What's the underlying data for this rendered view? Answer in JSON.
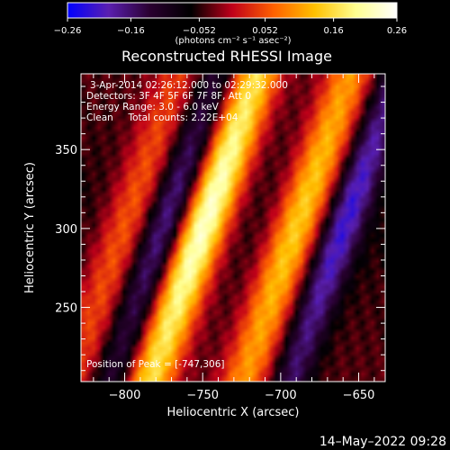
{
  "chart_data": {
    "type": "heatmap",
    "title": "Reconstructed RHESSI Image",
    "xlabel": "Heliocentric X (arcsec)",
    "ylabel": "Heliocentric Y (arcsec)",
    "xlim": [
      -828,
      -633
    ],
    "ylim": [
      203,
      398
    ],
    "x_ticks": [
      -800,
      -750,
      -700,
      -650
    ],
    "x_tick_labels": [
      "−800",
      "−750",
      "−700",
      "−650"
    ],
    "y_ticks": [
      250,
      300,
      350
    ],
    "y_tick_labels": [
      "250",
      "300",
      "350"
    ],
    "colorbar": {
      "range": [
        -0.26,
        0.26
      ],
      "ticks": [
        -0.26,
        -0.16,
        -0.052,
        0.052,
        0.16,
        0.26
      ],
      "tick_labels": [
        "−0.26",
        "−0.16",
        "−0.052",
        "0.052",
        "0.16",
        "0.26"
      ],
      "unit_label": "(photons cm⁻² s⁻¹ asec⁻²)",
      "colors": [
        "#0000ff",
        "#5a1fb0",
        "#2a0030",
        "#000000",
        "#c0001a",
        "#ff6000",
        "#ffc000",
        "#ffff90",
        "#ffffff"
      ]
    },
    "annotations": [
      "3-Apr-2014 02:26:12.000 to 02:29:32.000",
      "Detectors: 3F 4F 5F 6F 7F 8F, Att 0",
      "Energy Range: 3.0 - 6.0 keV",
      "Clean     Total counts: 2.22E+04"
    ],
    "peak_label": "Position of Peak = [-747,306]",
    "peak": {
      "x": -747,
      "y": 306,
      "value": 0.26
    },
    "bright_ridges": [
      {
        "x_center_at_y300": -750,
        "peak_intensity": 0.26
      },
      {
        "x_center_at_y300": -690,
        "peak_intensity": 0.18
      },
      {
        "x_center_at_y300": -800,
        "peak_intensity": 0.1
      }
    ],
    "dark_troughs": [
      {
        "x_center_at_y300": -775,
        "min_intensity": -0.18
      },
      {
        "x_center_at_y300": -660,
        "min_intensity": -0.22
      }
    ],
    "grid": false
  },
  "footer": {
    "timestamp": "14–May–2022 09:28"
  }
}
